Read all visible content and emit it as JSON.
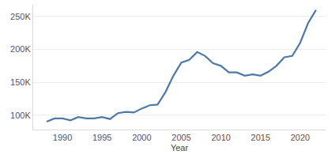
{
  "chart_data": {
    "type": "line",
    "x_label": "Year",
    "x": [
      1988,
      1989,
      1990,
      1991,
      1992,
      1993,
      1994,
      1995,
      1996,
      1997,
      1998,
      1999,
      2000,
      2001,
      2002,
      2003,
      2004,
      2005,
      2006,
      2007,
      2008,
      2009,
      2010,
      2011,
      2012,
      2013,
      2014,
      2015,
      2016,
      2017,
      2018,
      2019,
      2020,
      2021,
      2022
    ],
    "values": [
      90000,
      95000,
      95000,
      92000,
      97000,
      95000,
      95000,
      97000,
      94000,
      103000,
      105000,
      104000,
      110000,
      115000,
      116000,
      135000,
      160000,
      180000,
      184000,
      196000,
      190000,
      179000,
      175000,
      165000,
      165000,
      160000,
      162000,
      160000,
      166000,
      175000,
      188000,
      190000,
      210000,
      240000,
      260000
    ],
    "color": "#4e79a7",
    "xlim": [
      1986.3,
      2023.2
    ],
    "xticks": [
      1990,
      1995,
      2000,
      2005,
      2010,
      2015,
      2020
    ],
    "ylim": [
      78000,
      268000
    ],
    "yticks": [
      {
        "value": 100000,
        "label": "100K"
      },
      {
        "value": 150000,
        "label": "150K"
      },
      {
        "value": 200000,
        "label": "200K"
      },
      {
        "value": 250000,
        "label": "250K"
      }
    ],
    "grid": true
  }
}
